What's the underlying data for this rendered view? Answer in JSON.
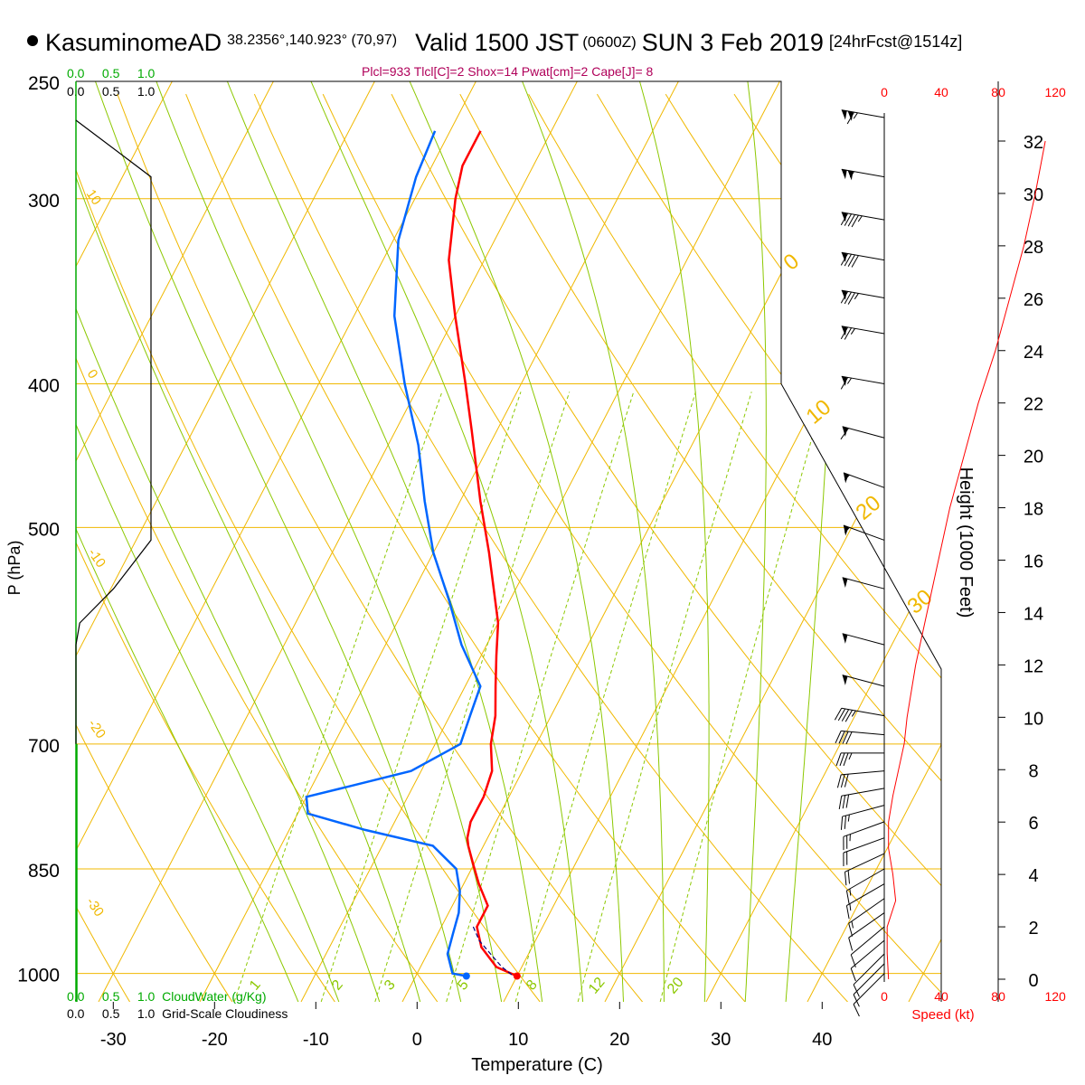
{
  "header": {
    "station": "KasuminomeAD",
    "coords": "38.2356°,140.923° (70,97)",
    "valid": "Valid 1500 JST",
    "utc": "(0600Z)",
    "date": "SUN 3 Feb 2019",
    "forecast": "[24hrFcst@1514z]",
    "indices": "Plcl=933 Tlcl[C]=2 Shox=14 Pwat[cm]=2 Cape[J]= 8"
  },
  "cloud_panel": {
    "cloudwater_ticks": [
      "0.0",
      "0.5",
      "1.0"
    ],
    "cloudwater_label": "CloudWater (g/Kg)",
    "cloudiness_ticks": [
      "0.0",
      "0.5",
      "1.0"
    ],
    "cloudiness_label": "Grid-Scale Cloudiness"
  },
  "colors": {
    "isobar": "#f0b800",
    "isotherm": "#f0b800",
    "dry_adiabat": "#f0b800",
    "moist_adiabat": "#8cc800",
    "mixing_ratio": "#8cc800",
    "temperature": "#ff0000",
    "dewpoint": "#0066ff",
    "parcel": "#000080",
    "cloudwater": "#00aa00",
    "cloudiness": "#000000",
    "speed": "#ff0000"
  },
  "chart_data": {
    "type": "line",
    "title": "",
    "xlabel": "Temperature (C)",
    "ylabel": "P (hPa)",
    "y2label": "Height (1000 Feet)",
    "speed_label": "Speed (kt)",
    "xlim": [
      -35,
      35
    ],
    "ylim": [
      1045,
      250
    ],
    "pressure_ticks": [
      250,
      300,
      400,
      500,
      700,
      850,
      1000
    ],
    "temperature_ticks": [
      -30,
      -20,
      -10,
      0,
      10,
      20,
      30,
      40
    ],
    "height_ticks": [
      0,
      2,
      4,
      6,
      8,
      10,
      12,
      14,
      16,
      18,
      20,
      22,
      24,
      26,
      28,
      30,
      32
    ],
    "speed_ticks": [
      0,
      40,
      80,
      120
    ],
    "dry_adiabat_labels": [
      "10",
      "0",
      "-10",
      "-20",
      "-30"
    ],
    "moist_adiabat_labels": [
      "0",
      "10",
      "20",
      "30"
    ],
    "mixing_ratio_labels": [
      "1",
      "2",
      "3",
      "5",
      "8",
      "12",
      "20"
    ],
    "series": [
      {
        "name": "Temperature",
        "p": [
          270,
          285,
          300,
          330,
          360,
          400,
          430,
          480,
          520,
          580,
          610,
          640,
          670,
          700,
          730,
          760,
          790,
          810,
          820,
          845,
          870,
          900,
          930,
          960,
          990,
          1004
        ],
        "t": [
          -37,
          -37,
          -36,
          -33.5,
          -30,
          -25.5,
          -22.5,
          -18,
          -14.5,
          -10,
          -8.5,
          -7,
          -5.5,
          -4.5,
          -3,
          -2.5,
          -2.5,
          -2,
          -1.5,
          0,
          1.5,
          3.5,
          3.5,
          5,
          7.5,
          10
        ]
      },
      {
        "name": "Dewpoint",
        "p": [
          270,
          290,
          320,
          360,
          400,
          440,
          480,
          520,
          560,
          600,
          640,
          670,
          700,
          730,
          750,
          760,
          780,
          800,
          820,
          850,
          880,
          910,
          940,
          970,
          1000,
          1004
        ],
        "t": [
          -41.5,
          -41,
          -39.5,
          -36,
          -31.5,
          -27,
          -23.5,
          -20,
          -16,
          -12.5,
          -8.5,
          -8,
          -7.5,
          -11,
          -17,
          -20,
          -19,
          -12.5,
          -5,
          -1.5,
          0,
          1,
          1.5,
          2,
          3.5,
          5
        ]
      },
      {
        "name": "Parcel",
        "p": [
          930,
          950,
          970,
          990,
          1004
        ],
        "t": [
          3.5,
          4.8,
          6.6,
          8.4,
          10
        ]
      },
      {
        "name": "CloudWater",
        "p": [
          250,
          1045
        ],
        "v": [
          0,
          0
        ]
      },
      {
        "name": "Cloudiness",
        "p": [
          270,
          290,
          300,
          400,
          490,
          510,
          550,
          580,
          600,
          660,
          700
        ],
        "v": [
          0,
          1.0,
          1.0,
          1.0,
          1.0,
          1.0,
          0.5,
          0.05,
          0,
          0,
          0
        ]
      },
      {
        "name": "Wind Speed",
        "h": [
          0,
          1,
          2,
          3,
          4,
          5,
          6,
          7,
          8,
          9,
          10,
          12,
          14,
          16,
          18,
          20,
          22,
          24,
          26,
          28,
          30,
          32
        ],
        "s": [
          3,
          2,
          2,
          8,
          6,
          3,
          3,
          6,
          10,
          14,
          16,
          22,
          30,
          38,
          46,
          56,
          66,
          78,
          88,
          98,
          106,
          113
        ]
      }
    ],
    "winds": [
      {
        "p": 265,
        "dir": 280,
        "spd": 115
      },
      {
        "p": 290,
        "dir": 280,
        "spd": 105
      },
      {
        "p": 310,
        "dir": 280,
        "spd": 95
      },
      {
        "p": 330,
        "dir": 280,
        "spd": 90
      },
      {
        "p": 350,
        "dir": 280,
        "spd": 85
      },
      {
        "p": 370,
        "dir": 280,
        "spd": 75
      },
      {
        "p": 400,
        "dir": 280,
        "spd": 65
      },
      {
        "p": 435,
        "dir": 285,
        "spd": 60
      },
      {
        "p": 470,
        "dir": 290,
        "spd": 55
      },
      {
        "p": 510,
        "dir": 290,
        "spd": 55
      },
      {
        "p": 550,
        "dir": 285,
        "spd": 50
      },
      {
        "p": 600,
        "dir": 285,
        "spd": 50
      },
      {
        "p": 640,
        "dir": 285,
        "spd": 50
      },
      {
        "p": 670,
        "dir": 280,
        "spd": 45
      },
      {
        "p": 690,
        "dir": 275,
        "spd": 40
      },
      {
        "p": 710,
        "dir": 270,
        "spd": 35
      },
      {
        "p": 730,
        "dir": 265,
        "spd": 30
      },
      {
        "p": 750,
        "dir": 260,
        "spd": 30
      },
      {
        "p": 770,
        "dir": 255,
        "spd": 25
      },
      {
        "p": 790,
        "dir": 250,
        "spd": 25
      },
      {
        "p": 810,
        "dir": 250,
        "spd": 20
      },
      {
        "p": 830,
        "dir": 245,
        "spd": 20
      },
      {
        "p": 850,
        "dir": 240,
        "spd": 15
      },
      {
        "p": 870,
        "dir": 240,
        "spd": 15
      },
      {
        "p": 890,
        "dir": 235,
        "spd": 15
      },
      {
        "p": 910,
        "dir": 235,
        "spd": 10
      },
      {
        "p": 930,
        "dir": 230,
        "spd": 10
      },
      {
        "p": 950,
        "dir": 230,
        "spd": 10
      },
      {
        "p": 970,
        "dir": 225,
        "spd": 10
      },
      {
        "p": 985,
        "dir": 225,
        "spd": 10
      },
      {
        "p": 1000,
        "dir": 225,
        "spd": 10
      }
    ],
    "surface": {
      "p": 1004,
      "t": 10,
      "td": 5
    }
  }
}
